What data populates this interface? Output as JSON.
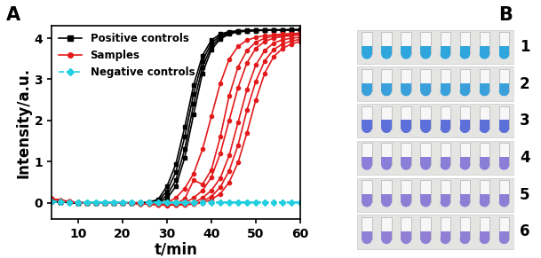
{
  "panel_label": "A",
  "chart_data": {
    "type": "line",
    "x_label": "t/min",
    "y_label": "Intensity/a.u.",
    "x": [
      4,
      6,
      8,
      10,
      12,
      14,
      16,
      18,
      20,
      22,
      24,
      26,
      28,
      30,
      32,
      34,
      36,
      38,
      40,
      42,
      44,
      46,
      48,
      50,
      52,
      54,
      56,
      58,
      60
    ],
    "xlim": [
      4,
      60
    ],
    "xticks": [
      10,
      20,
      30,
      40,
      50,
      60
    ],
    "ylim": [
      -0.4,
      4.3
    ],
    "yticks": [
      0,
      1,
      2,
      3,
      4
    ],
    "legend": "upper left",
    "series": [
      {
        "name": "Positive controls",
        "color": "#000000",
        "marker": "s",
        "line_style": "solid",
        "values": [
          0.03,
          0.02,
          0.01,
          0,
          0,
          0,
          0,
          0,
          0,
          0,
          0,
          0.02,
          0.08,
          0.4,
          0.94,
          1.84,
          2.86,
          3.58,
          3.95,
          4.1,
          4.16,
          4.18,
          4.19,
          4.2,
          4.2,
          4.2,
          4.2,
          4.2,
          4.2
        ]
      },
      {
        "name": "Positive controls",
        "color": "#000000",
        "marker": "s",
        "line_style": "solid",
        "values": [
          0.03,
          0.02,
          0.01,
          0,
          0,
          0,
          0,
          0,
          0,
          0,
          0,
          0.01,
          0.05,
          0.28,
          0.75,
          1.6,
          2.65,
          3.45,
          3.88,
          4.06,
          4.14,
          4.17,
          4.18,
          4.19,
          4.2,
          4.2,
          4.2,
          4.2,
          4.2
        ]
      },
      {
        "name": "Positive controls",
        "color": "#000000",
        "marker": "s",
        "line_style": "solid",
        "values": [
          0.03,
          0.02,
          0.01,
          0,
          0,
          0,
          0,
          0,
          0,
          0,
          0,
          0,
          0.03,
          0.18,
          0.55,
          1.3,
          2.4,
          3.3,
          3.8,
          4.02,
          4.12,
          4.16,
          4.18,
          4.19,
          4.2,
          4.2,
          4.2,
          4.21,
          4.21
        ]
      },
      {
        "name": "Positive controls",
        "color": "#000000",
        "marker": "s",
        "line_style": "solid",
        "values": [
          0.03,
          0.02,
          0.01,
          0,
          0,
          0,
          0,
          0,
          0,
          0,
          0,
          0,
          0.02,
          0.1,
          0.4,
          1.1,
          2.15,
          3.15,
          3.72,
          3.98,
          4.1,
          4.15,
          4.17,
          4.18,
          4.19,
          4.2,
          4.2,
          4.2,
          4.2
        ]
      },
      {
        "name": "Samples",
        "color": "#e31a1c",
        "marker": "o",
        "line_style": "solid",
        "values": [
          0.1,
          0.06,
          0.03,
          0.01,
          0,
          0,
          0,
          0,
          0,
          -0.01,
          -0.02,
          -0.03,
          -0.04,
          0.0,
          0.12,
          0.35,
          0.71,
          1.3,
          2.1,
          2.9,
          3.49,
          3.8,
          3.95,
          4.02,
          4.06,
          4.08,
          4.1,
          4.11,
          4.12
        ]
      },
      {
        "name": "Samples",
        "color": "#e31a1c",
        "marker": "o",
        "line_style": "solid",
        "values": [
          0.1,
          0.06,
          0.03,
          0.01,
          0,
          0,
          0,
          0,
          0,
          -0.01,
          -0.02,
          -0.03,
          -0.05,
          -0.05,
          -0.02,
          0.1,
          0.55,
          0.45,
          0.8,
          1.6,
          2.6,
          3.3,
          3.7,
          3.9,
          4.0,
          4.05,
          4.07,
          4.09,
          4.1
        ]
      },
      {
        "name": "Samples",
        "color": "#e31a1c",
        "marker": "o",
        "line_style": "solid",
        "values": [
          0.1,
          0.06,
          0.03,
          0.01,
          0,
          0,
          0,
          0,
          0,
          -0.01,
          -0.02,
          -0.03,
          -0.05,
          -0.06,
          -0.05,
          0.0,
          0.12,
          0.3,
          0.62,
          1.2,
          2.0,
          2.8,
          3.4,
          3.75,
          3.92,
          4.0,
          4.04,
          4.06,
          4.08
        ]
      },
      {
        "name": "Samples",
        "color": "#e31a1c",
        "marker": "o",
        "line_style": "solid",
        "values": [
          0.1,
          0.06,
          0.03,
          0.01,
          0,
          0,
          0,
          0,
          0,
          -0.01,
          -0.02,
          -0.03,
          -0.04,
          -0.05,
          -0.05,
          -0.03,
          0.0,
          0.12,
          0.3,
          0.6,
          1.15,
          1.95,
          2.75,
          3.35,
          3.7,
          3.88,
          3.96,
          4.0,
          4.02
        ]
      },
      {
        "name": "Samples",
        "color": "#e31a1c",
        "marker": "o",
        "line_style": "solid",
        "values": [
          0.1,
          0.06,
          0.03,
          0.01,
          0,
          0,
          0,
          0,
          0,
          -0.01,
          -0.02,
          -0.03,
          -0.03,
          -0.04,
          -0.05,
          -0.04,
          -0.02,
          0.04,
          0.15,
          0.38,
          0.78,
          1.4,
          2.25,
          2.95,
          3.45,
          3.72,
          3.86,
          3.93,
          3.97
        ]
      },
      {
        "name": "Samples",
        "color": "#e31a1c",
        "marker": "o",
        "line_style": "solid",
        "values": [
          0.1,
          0.06,
          0.03,
          0.01,
          0,
          0,
          0,
          0,
          0,
          -0.01,
          -0.02,
          -0.03,
          -0.03,
          -0.04,
          -0.05,
          -0.05,
          -0.03,
          0.0,
          0.08,
          0.22,
          0.5,
          0.98,
          1.7,
          2.5,
          3.15,
          3.55,
          3.75,
          3.86,
          3.92
        ]
      },
      {
        "name": "Negative controls",
        "color": "#22cfe0",
        "marker": "D",
        "line_style": "dashed",
        "values": [
          0.04,
          0.03,
          0.02,
          0.02,
          0.02,
          0.02,
          0.02,
          0.02,
          0.02,
          0.02,
          0.02,
          0.02,
          0.02,
          0.02,
          0.02,
          0.02,
          0.02,
          0.02,
          0.02,
          0.02,
          0.02,
          0.02,
          0.02,
          0.02,
          0.02,
          0.02,
          0.02,
          0.02,
          0.02
        ]
      },
      {
        "name": "Negative controls",
        "color": "#22cfe0",
        "marker": "D",
        "line_style": "dashed",
        "values": [
          0.03,
          0.02,
          0.01,
          0.01,
          0.01,
          0.01,
          0.01,
          0.01,
          0.01,
          0.01,
          0.01,
          0.01,
          0.01,
          0.01,
          0.01,
          0.01,
          0.01,
          0.01,
          0.01,
          0.01,
          0.01,
          0.01,
          0.01,
          0.01,
          0.01,
          0.01,
          0.01,
          0.01,
          0.01
        ]
      },
      {
        "name": "Negative controls",
        "color": "#22cfe0",
        "marker": "D",
        "line_style": "dashed",
        "values": [
          0.02,
          0.01,
          0.0,
          0.0,
          0.0,
          0.0,
          0.0,
          0.0,
          0.0,
          0.0,
          0.0,
          0.0,
          0.0,
          0.0,
          0.0,
          0.0,
          0.0,
          0.0,
          0.0,
          0.0,
          0.0,
          0.0,
          0.0,
          0.0,
          0.0,
          0.0,
          0.0,
          0.0,
          0.0
        ]
      }
    ]
  },
  "image_panel": {
    "label": "B",
    "rows": [
      {
        "label": "1",
        "color": "#2ea6dd"
      },
      {
        "label": "2",
        "color": "#3aa0dc"
      },
      {
        "label": "3",
        "color": "#5d6fd8"
      },
      {
        "label": "4",
        "color": "#8a7ed8"
      },
      {
        "label": "5",
        "color": "#8d7fd6"
      },
      {
        "label": "6",
        "color": "#8f80d6"
      }
    ]
  }
}
